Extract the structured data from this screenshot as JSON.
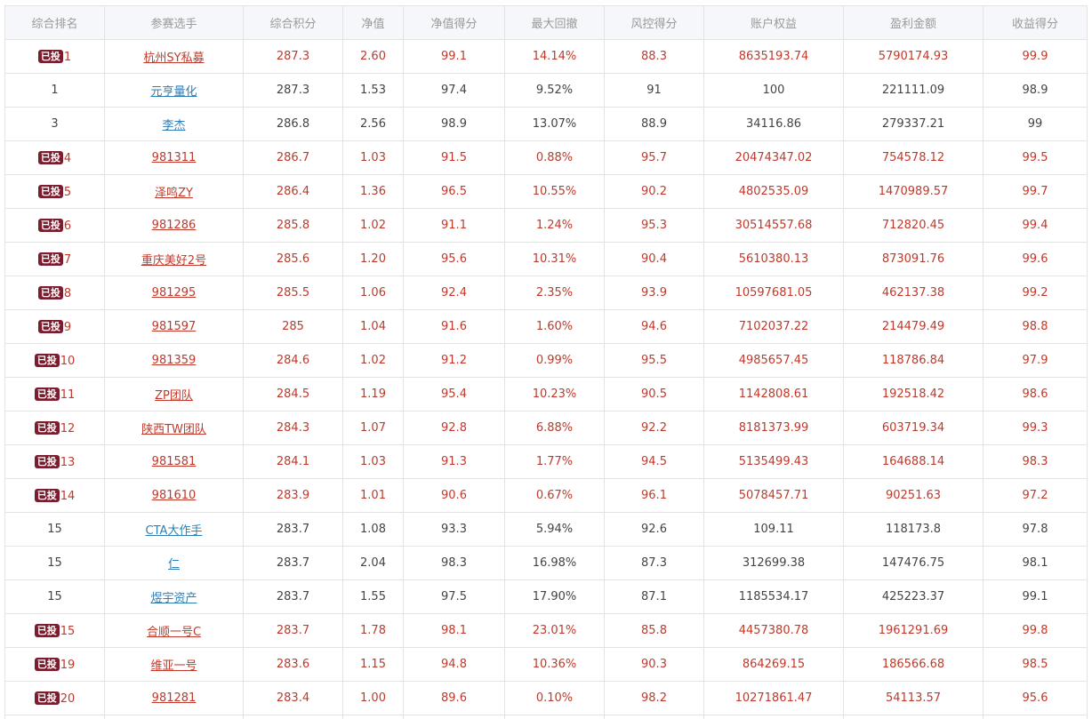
{
  "table": {
    "headers": [
      "综合排名",
      "参赛选手",
      "综合积分",
      "净值",
      "净值得分",
      "最大回撤",
      "风控得分",
      "账户权益",
      "盈利金额",
      "收益得分"
    ],
    "badge_label": "已投",
    "rows": [
      {
        "invested": true,
        "rank": "1",
        "name": "杭州SY私募",
        "score": "287.3",
        "nav": "2.60",
        "nav_score": "99.1",
        "drawdown": "14.14%",
        "risk_score": "88.3",
        "equity": "8635193.74",
        "profit": "5790174.93",
        "return_score": "99.9"
      },
      {
        "invested": false,
        "rank": "1",
        "name": "元亨量化",
        "score": "287.3",
        "nav": "1.53",
        "nav_score": "97.4",
        "drawdown": "9.52%",
        "risk_score": "91",
        "equity": "100",
        "profit": "221111.09",
        "return_score": "98.9"
      },
      {
        "invested": false,
        "rank": "3",
        "name": "李杰",
        "score": "286.8",
        "nav": "2.56",
        "nav_score": "98.9",
        "drawdown": "13.07%",
        "risk_score": "88.9",
        "equity": "34116.86",
        "profit": "279337.21",
        "return_score": "99"
      },
      {
        "invested": true,
        "rank": "4",
        "name": "981311",
        "score": "286.7",
        "nav": "1.03",
        "nav_score": "91.5",
        "drawdown": "0.88%",
        "risk_score": "95.7",
        "equity": "20474347.02",
        "profit": "754578.12",
        "return_score": "99.5"
      },
      {
        "invested": true,
        "rank": "5",
        "name": "泽鸣ZY",
        "score": "286.4",
        "nav": "1.36",
        "nav_score": "96.5",
        "drawdown": "10.55%",
        "risk_score": "90.2",
        "equity": "4802535.09",
        "profit": "1470989.57",
        "return_score": "99.7"
      },
      {
        "invested": true,
        "rank": "6",
        "name": "981286",
        "score": "285.8",
        "nav": "1.02",
        "nav_score": "91.1",
        "drawdown": "1.24%",
        "risk_score": "95.3",
        "equity": "30514557.68",
        "profit": "712820.45",
        "return_score": "99.4"
      },
      {
        "invested": true,
        "rank": "7",
        "name": "重庆美好2号",
        "score": "285.6",
        "nav": "1.20",
        "nav_score": "95.6",
        "drawdown": "10.31%",
        "risk_score": "90.4",
        "equity": "5610380.13",
        "profit": "873091.76",
        "return_score": "99.6"
      },
      {
        "invested": true,
        "rank": "8",
        "name": "981295",
        "score": "285.5",
        "nav": "1.06",
        "nav_score": "92.4",
        "drawdown": "2.35%",
        "risk_score": "93.9",
        "equity": "10597681.05",
        "profit": "462137.38",
        "return_score": "99.2"
      },
      {
        "invested": true,
        "rank": "9",
        "name": "981597",
        "score": "285",
        "nav": "1.04",
        "nav_score": "91.6",
        "drawdown": "1.60%",
        "risk_score": "94.6",
        "equity": "7102037.22",
        "profit": "214479.49",
        "return_score": "98.8"
      },
      {
        "invested": true,
        "rank": "10",
        "name": "981359",
        "score": "284.6",
        "nav": "1.02",
        "nav_score": "91.2",
        "drawdown": "0.99%",
        "risk_score": "95.5",
        "equity": "4985657.45",
        "profit": "118786.84",
        "return_score": "97.9"
      },
      {
        "invested": true,
        "rank": "11",
        "name": "ZP团队",
        "score": "284.5",
        "nav": "1.19",
        "nav_score": "95.4",
        "drawdown": "10.23%",
        "risk_score": "90.5",
        "equity": "1142808.61",
        "profit": "192518.42",
        "return_score": "98.6"
      },
      {
        "invested": true,
        "rank": "12",
        "name": "陕西TW团队",
        "score": "284.3",
        "nav": "1.07",
        "nav_score": "92.8",
        "drawdown": "6.88%",
        "risk_score": "92.2",
        "equity": "8181373.99",
        "profit": "603719.34",
        "return_score": "99.3"
      },
      {
        "invested": true,
        "rank": "13",
        "name": "981581",
        "score": "284.1",
        "nav": "1.03",
        "nav_score": "91.3",
        "drawdown": "1.77%",
        "risk_score": "94.5",
        "equity": "5135499.43",
        "profit": "164688.14",
        "return_score": "98.3"
      },
      {
        "invested": true,
        "rank": "14",
        "name": "981610",
        "score": "283.9",
        "nav": "1.01",
        "nav_score": "90.6",
        "drawdown": "0.67%",
        "risk_score": "96.1",
        "equity": "5078457.71",
        "profit": "90251.63",
        "return_score": "97.2"
      },
      {
        "invested": false,
        "rank": "15",
        "name": "CTA大作手",
        "score": "283.7",
        "nav": "1.08",
        "nav_score": "93.3",
        "drawdown": "5.94%",
        "risk_score": "92.6",
        "equity": "109.11",
        "profit": "118173.8",
        "return_score": "97.8"
      },
      {
        "invested": false,
        "rank": "15",
        "name": "仁",
        "score": "283.7",
        "nav": "2.04",
        "nav_score": "98.3",
        "drawdown": "16.98%",
        "risk_score": "87.3",
        "equity": "312699.38",
        "profit": "147476.75",
        "return_score": "98.1"
      },
      {
        "invested": false,
        "rank": "15",
        "name": "煜宇资产",
        "score": "283.7",
        "nav": "1.55",
        "nav_score": "97.5",
        "drawdown": "17.90%",
        "risk_score": "87.1",
        "equity": "1185534.17",
        "profit": "425223.37",
        "return_score": "99.1"
      },
      {
        "invested": true,
        "rank": "15",
        "name": "合顺一号C",
        "score": "283.7",
        "nav": "1.78",
        "nav_score": "98.1",
        "drawdown": "23.01%",
        "risk_score": "85.8",
        "equity": "4457380.78",
        "profit": "1961291.69",
        "return_score": "99.8"
      },
      {
        "invested": true,
        "rank": "19",
        "name": "维亚一号",
        "score": "283.6",
        "nav": "1.15",
        "nav_score": "94.8",
        "drawdown": "10.36%",
        "risk_score": "90.3",
        "equity": "864269.15",
        "profit": "186566.68",
        "return_score": "98.5"
      },
      {
        "invested": true,
        "rank": "20",
        "name": "981281",
        "score": "283.4",
        "nav": "1.00",
        "nav_score": "89.6",
        "drawdown": "0.10%",
        "risk_score": "98.2",
        "equity": "10271861.47",
        "profit": "54113.57",
        "return_score": "95.6"
      }
    ]
  },
  "colors": {
    "invested_text": "#c0392b",
    "normal_link": "#2f7fb5",
    "badge_bg": "#7a1d2e",
    "header_bg": "#f5f7fa",
    "border": "#e3e3e3"
  }
}
